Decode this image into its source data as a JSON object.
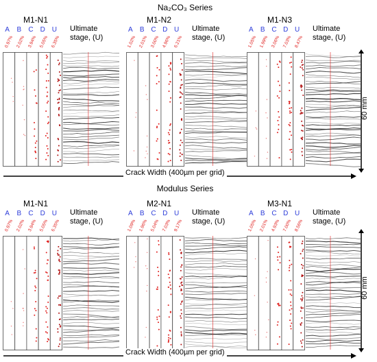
{
  "series": [
    {
      "title": "Na₂CO₃ Series",
      "panels": [
        {
          "name": "M1-N1",
          "percents": [
            "0.97%",
            "2.02%",
            "3.94%",
            "5.05%",
            "6.35%"
          ]
        },
        {
          "name": "M1-N2",
          "percents": [
            "1.02%",
            "2.01%",
            "3.00%",
            "4.96%",
            "6.21%"
          ]
        },
        {
          "name": "M1-N3",
          "percents": [
            "1.05%",
            "1.99%",
            "3.06%",
            "7.03%",
            "8.47%"
          ]
        }
      ],
      "x_axis_label": "Crack Width (400µm per grid)",
      "dimension_label": "60 mm"
    },
    {
      "title": "Modulus Series",
      "panels": [
        {
          "name": "M1-N1",
          "percents": [
            "0.97%",
            "2.02%",
            "3.94%",
            "5.05%",
            "6.35%"
          ]
        },
        {
          "name": "M2-N1",
          "percents": [
            "1.09%",
            "1.96%",
            "5.04%",
            "7.03%",
            "9.17%"
          ]
        },
        {
          "name": "M3-N1",
          "percents": [
            "1.05%",
            "2.01%",
            "4.93%",
            "7.00%",
            "8.56%"
          ]
        }
      ],
      "x_axis_label": "Crack Width (400µm per grid)",
      "dimension_label": "60 mm"
    }
  ],
  "stage_letters": [
    "A",
    "B",
    "C",
    "D",
    "U"
  ],
  "ultimate_label_line1": "Ultimate",
  "ultimate_label_line2": "stage, (U)",
  "colors": {
    "letters": "#2b3bd9",
    "dots": "#e0201e",
    "cracks": "#1a1a1a",
    "guide": "#e0201e"
  }
}
